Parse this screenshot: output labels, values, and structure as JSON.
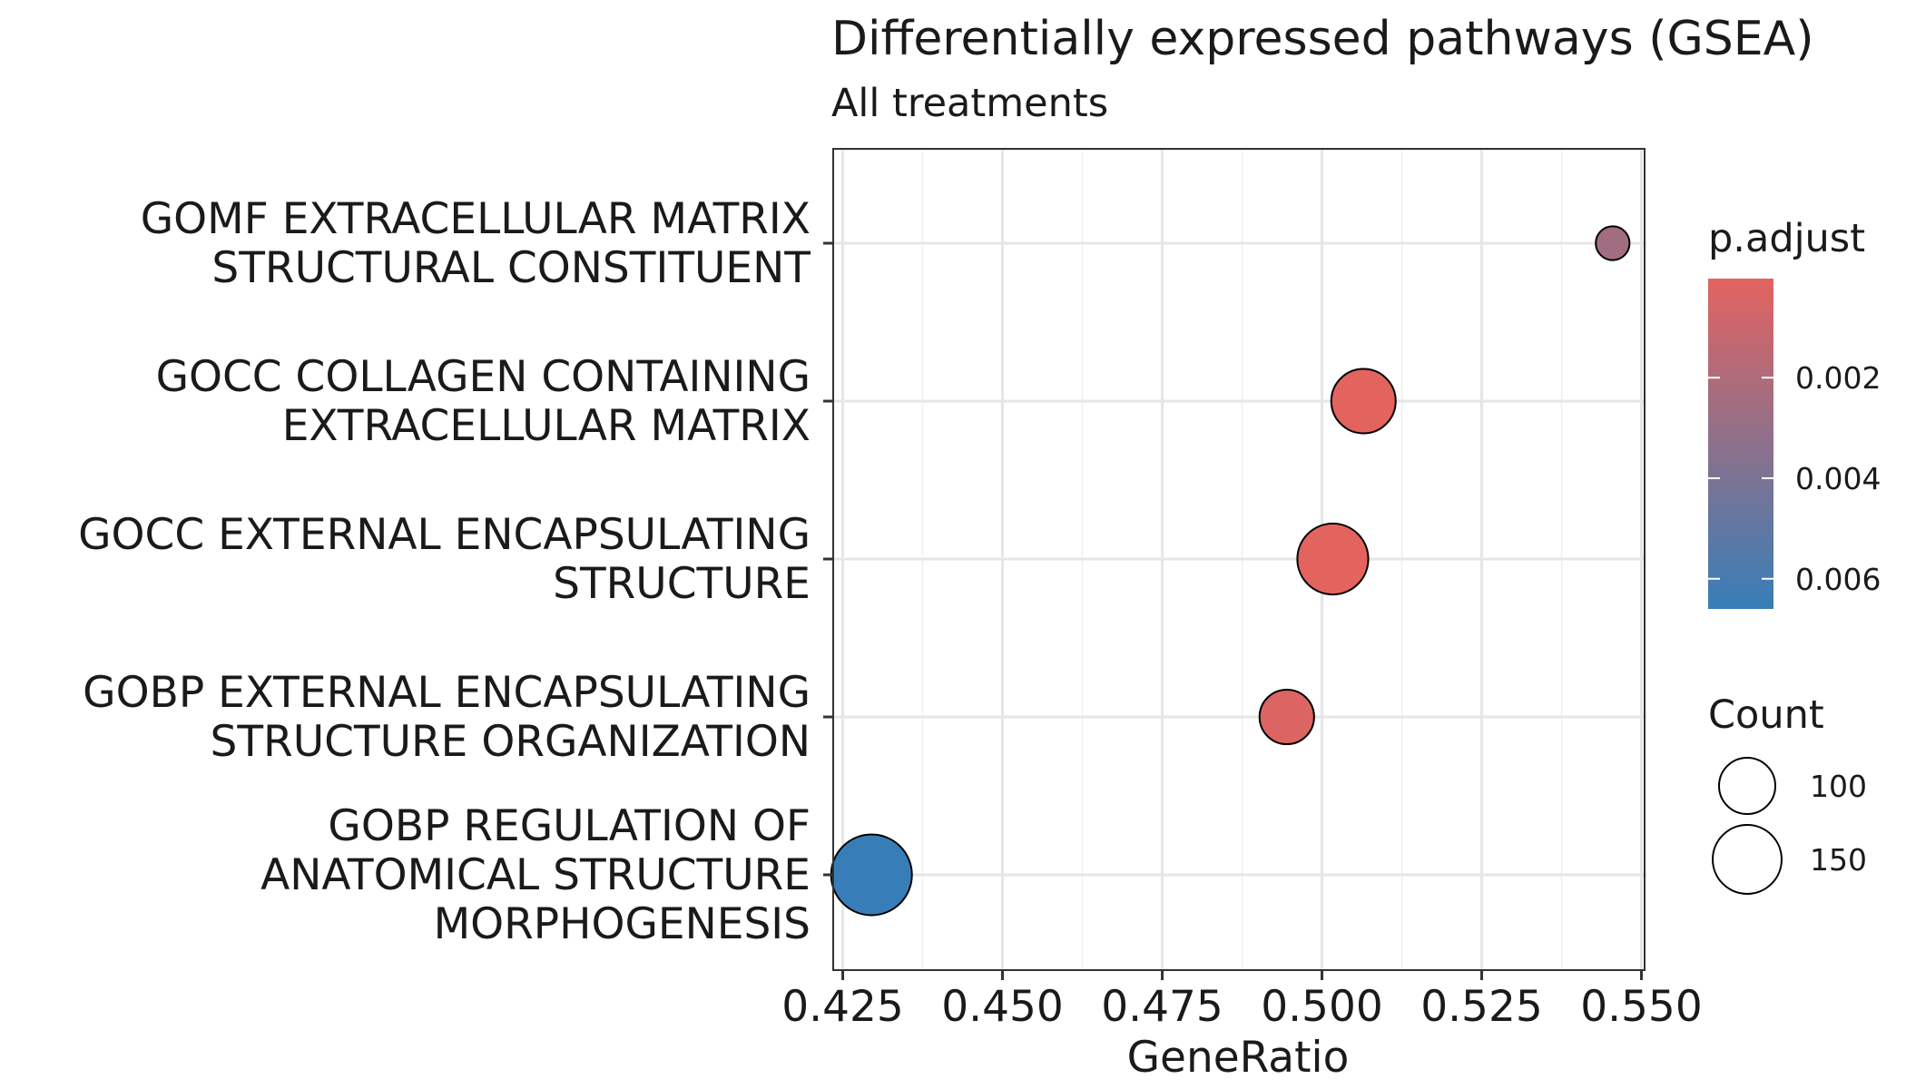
{
  "chart_data": {
    "type": "scatter",
    "title": "Differentially expressed pathways (GSEA)",
    "subtitle": "All treatments",
    "xlabel": "GeneRatio",
    "ylabel": "",
    "xlim": [
      0.4235,
      0.5505
    ],
    "xticks": [
      "0.425",
      "0.450",
      "0.475",
      "0.500",
      "0.525",
      "0.550"
    ],
    "grid": true,
    "legend_position": "right",
    "categories": [
      [
        "GOMF EXTRACELLULAR MATRIX",
        "STRUCTURAL CONSTITUENT"
      ],
      [
        "GOCC COLLAGEN CONTAINING",
        "EXTRACELLULAR MATRIX"
      ],
      [
        "GOCC EXTERNAL ENCAPSULATING",
        "STRUCTURE"
      ],
      [
        "GOBP EXTERNAL ENCAPSULATING",
        "STRUCTURE ORGANIZATION"
      ],
      [
        "GOBP REGULATION OF",
        "ANATOMICAL STRUCTURE",
        "MORPHOGENESIS"
      ]
    ],
    "points": [
      {
        "gene_ratio": 0.5455,
        "p_adjust": 0.0025,
        "count": 36
      },
      {
        "gene_ratio": 0.5065,
        "p_adjust": 3e-05,
        "count": 131
      },
      {
        "gene_ratio": 0.5017,
        "p_adjust": 3e-05,
        "count": 159
      },
      {
        "gene_ratio": 0.4945,
        "p_adjust": 0.0003,
        "count": 94
      },
      {
        "gene_ratio": 0.4295,
        "p_adjust": 0.0066,
        "count": 206
      }
    ],
    "color_legend": {
      "title": "p.adjust",
      "ticks": [
        "0.002",
        "0.004",
        "0.006"
      ],
      "range": [
        3e-05,
        0.0066
      ],
      "colors": {
        "low": "#E3635F",
        "high": "#377EB8"
      }
    },
    "size_legend": {
      "title": "Count",
      "entries": [
        {
          "label": "100",
          "value": 100
        },
        {
          "label": "150",
          "value": 150
        }
      ]
    }
  }
}
